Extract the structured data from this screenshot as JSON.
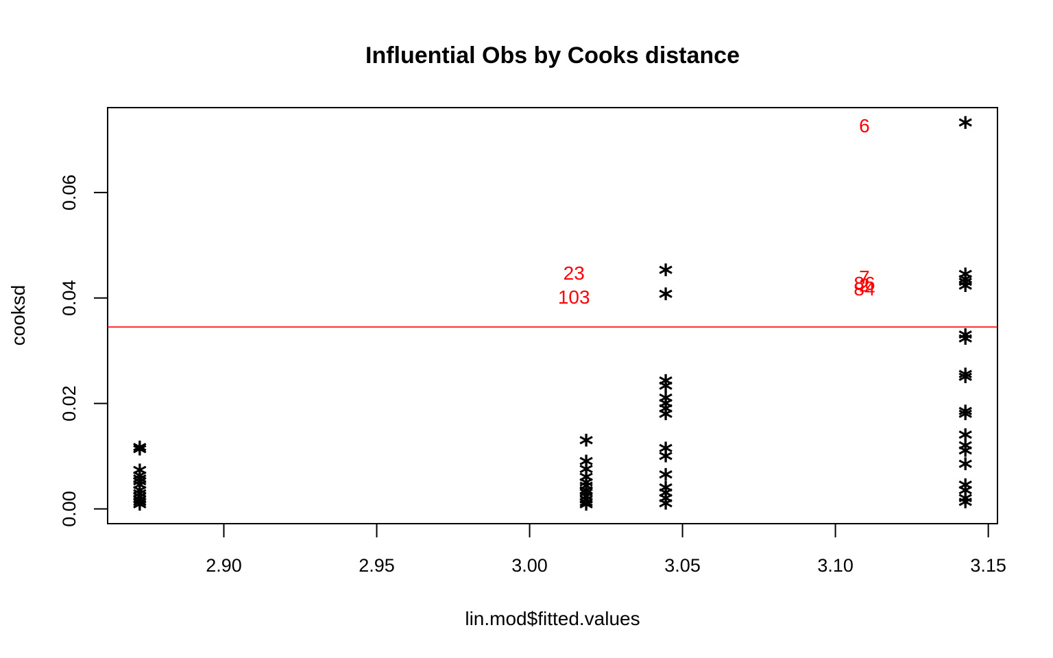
{
  "chart_data": {
    "type": "scatter",
    "title": "Influential Obs by Cooks distance",
    "xlabel": "lin.mod$fitted.values",
    "ylabel": "cooksd",
    "xlim": [
      2.862,
      3.153
    ],
    "ylim": [
      -0.0028,
      0.0761
    ],
    "xticks": [
      2.9,
      2.95,
      3.0,
      3.05,
      3.1,
      3.15
    ],
    "xtick_labels": [
      "2.90",
      "2.95",
      "3.00",
      "3.05",
      "3.10",
      "3.15"
    ],
    "yticks": [
      0.0,
      0.02,
      0.04,
      0.06
    ],
    "ytick_labels": [
      "0.00",
      "0.02",
      "0.04",
      "0.06"
    ],
    "marker": "*",
    "marker_color": "#000000",
    "threshold": {
      "y": 0.0345,
      "color": "#ff0000"
    },
    "label_color": "#ff0000",
    "points": [
      {
        "x": 2.8725,
        "y": 0.0112
      },
      {
        "x": 2.8725,
        "y": 0.0108
      },
      {
        "x": 2.8725,
        "y": 0.0068
      },
      {
        "x": 2.8725,
        "y": 0.0058
      },
      {
        "x": 2.8725,
        "y": 0.0052
      },
      {
        "x": 2.8725,
        "y": 0.0047
      },
      {
        "x": 2.8725,
        "y": 0.004
      },
      {
        "x": 2.8725,
        "y": 0.003
      },
      {
        "x": 2.8725,
        "y": 0.0024
      },
      {
        "x": 2.8725,
        "y": 0.0018
      },
      {
        "x": 2.8725,
        "y": 0.0012
      },
      {
        "x": 2.8725,
        "y": 0.0008
      },
      {
        "x": 2.8725,
        "y": 0.0003
      },
      {
        "x": 3.0185,
        "y": 0.0125
      },
      {
        "x": 3.0185,
        "y": 0.0085
      },
      {
        "x": 3.0185,
        "y": 0.007
      },
      {
        "x": 3.0185,
        "y": 0.0055
      },
      {
        "x": 3.0185,
        "y": 0.0045
      },
      {
        "x": 3.0185,
        "y": 0.0038
      },
      {
        "x": 3.0185,
        "y": 0.003
      },
      {
        "x": 3.0185,
        "y": 0.0025
      },
      {
        "x": 3.0185,
        "y": 0.0018
      },
      {
        "x": 3.0185,
        "y": 0.0012
      },
      {
        "x": 3.0185,
        "y": 0.0007
      },
      {
        "x": 3.0185,
        "y": 0.0003
      },
      {
        "x": 3.0445,
        "y": 0.0448,
        "label": "23"
      },
      {
        "x": 3.0445,
        "y": 0.0402,
        "label": "103"
      },
      {
        "x": 3.0445,
        "y": 0.0238
      },
      {
        "x": 3.0445,
        "y": 0.0228
      },
      {
        "x": 3.0445,
        "y": 0.0205
      },
      {
        "x": 3.0445,
        "y": 0.0195
      },
      {
        "x": 3.0445,
        "y": 0.0185
      },
      {
        "x": 3.0445,
        "y": 0.0175
      },
      {
        "x": 3.0445,
        "y": 0.011
      },
      {
        "x": 3.0445,
        "y": 0.0095
      },
      {
        "x": 3.0445,
        "y": 0.006
      },
      {
        "x": 3.0445,
        "y": 0.0035
      },
      {
        "x": 3.0445,
        "y": 0.0025
      },
      {
        "x": 3.0445,
        "y": 0.0015
      },
      {
        "x": 3.0445,
        "y": 0.0005
      },
      {
        "x": 3.1425,
        "y": 0.0727,
        "label": "6"
      },
      {
        "x": 3.1425,
        "y": 0.044,
        "label": "7"
      },
      {
        "x": 3.1425,
        "y": 0.043,
        "label": "86"
      },
      {
        "x": 3.1425,
        "y": 0.0425,
        "label": "2"
      },
      {
        "x": 3.1425,
        "y": 0.0418,
        "label": "84"
      },
      {
        "x": 3.1425,
        "y": 0.0325
      },
      {
        "x": 3.1425,
        "y": 0.0318
      },
      {
        "x": 3.1425,
        "y": 0.025
      },
      {
        "x": 3.1425,
        "y": 0.0245
      },
      {
        "x": 3.1425,
        "y": 0.018
      },
      {
        "x": 3.1425,
        "y": 0.0175
      },
      {
        "x": 3.1425,
        "y": 0.0135
      },
      {
        "x": 3.1425,
        "y": 0.0115
      },
      {
        "x": 3.1425,
        "y": 0.0105
      },
      {
        "x": 3.1425,
        "y": 0.008
      },
      {
        "x": 3.1425,
        "y": 0.004
      },
      {
        "x": 3.1425,
        "y": 0.003
      },
      {
        "x": 3.1425,
        "y": 0.0015
      },
      {
        "x": 3.1425,
        "y": 0.0008
      }
    ],
    "labeled_points": [
      {
        "text": "6",
        "x": 3.1095,
        "y": 0.0727
      },
      {
        "text": "23",
        "x": 3.0145,
        "y": 0.0448
      },
      {
        "text": "103",
        "x": 3.0145,
        "y": 0.0402
      },
      {
        "text": "7",
        "x": 3.1095,
        "y": 0.044
      },
      {
        "text": "86",
        "x": 3.1095,
        "y": 0.0428
      },
      {
        "text": "2",
        "x": 3.1095,
        "y": 0.0425
      },
      {
        "text": "84",
        "x": 3.1095,
        "y": 0.0418
      }
    ]
  }
}
